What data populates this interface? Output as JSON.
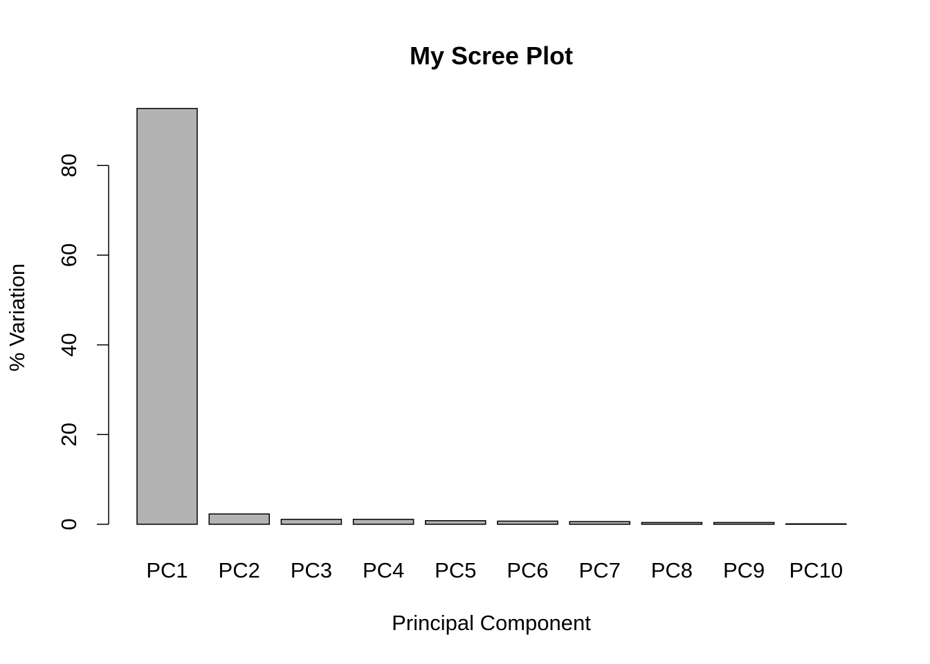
{
  "chart_data": {
    "type": "bar",
    "title": "My Scree Plot",
    "xlabel": "Principal Component",
    "ylabel": "% Variation",
    "categories": [
      "PC1",
      "PC2",
      "PC3",
      "PC4",
      "PC5",
      "PC6",
      "PC7",
      "PC8",
      "PC9",
      "PC10"
    ],
    "values": [
      92.7,
      2.3,
      1.1,
      1.1,
      0.8,
      0.7,
      0.6,
      0.4,
      0.4,
      0.1
    ],
    "yticks": [
      0,
      20,
      40,
      60,
      80
    ],
    "ylim": [
      0,
      92.7
    ],
    "grid": false,
    "colors": {
      "bar_fill": "#b3b3b3",
      "bar_stroke": "#000000"
    }
  }
}
